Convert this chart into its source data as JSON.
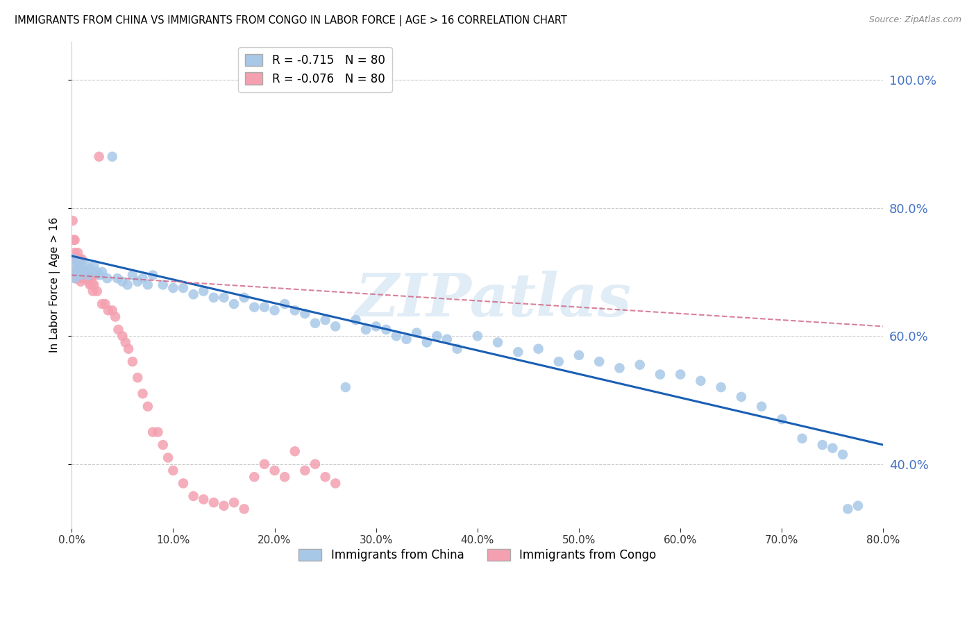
{
  "title": "IMMIGRANTS FROM CHINA VS IMMIGRANTS FROM CONGO IN LABOR FORCE | AGE > 16 CORRELATION CHART",
  "source": "Source: ZipAtlas.com",
  "ylabel": "In Labor Force | Age > 16",
  "china_R": -0.715,
  "china_N": 80,
  "congo_R": -0.076,
  "congo_N": 80,
  "china_color": "#a8c8e8",
  "congo_color": "#f4a0b0",
  "china_line_color": "#1a5fb4",
  "congo_line_color": "#d06080",
  "xlim": [
    0.0,
    0.8
  ],
  "ylim": [
    0.3,
    1.06
  ],
  "xticks": [
    0.0,
    0.1,
    0.2,
    0.3,
    0.4,
    0.5,
    0.6,
    0.7,
    0.8
  ],
  "yticks": [
    0.4,
    0.6,
    0.8,
    1.0
  ],
  "watermark": "ZIPatlas",
  "background": "#ffffff",
  "grid_color": "#cccccc",
  "china_scatter_x": [
    0.002,
    0.003,
    0.004,
    0.005,
    0.006,
    0.007,
    0.008,
    0.009,
    0.01,
    0.012,
    0.014,
    0.016,
    0.018,
    0.02,
    0.022,
    0.025,
    0.028,
    0.03,
    0.035,
    0.04,
    0.045,
    0.05,
    0.055,
    0.06,
    0.065,
    0.07,
    0.075,
    0.08,
    0.09,
    0.1,
    0.11,
    0.12,
    0.13,
    0.14,
    0.15,
    0.16,
    0.17,
    0.18,
    0.19,
    0.2,
    0.21,
    0.22,
    0.23,
    0.24,
    0.25,
    0.26,
    0.27,
    0.28,
    0.29,
    0.3,
    0.31,
    0.32,
    0.33,
    0.34,
    0.35,
    0.36,
    0.37,
    0.38,
    0.4,
    0.42,
    0.44,
    0.46,
    0.48,
    0.5,
    0.52,
    0.54,
    0.56,
    0.58,
    0.6,
    0.62,
    0.64,
    0.66,
    0.68,
    0.7,
    0.72,
    0.74,
    0.75,
    0.76,
    0.765,
    0.775
  ],
  "china_scatter_y": [
    0.72,
    0.69,
    0.71,
    0.7,
    0.715,
    0.7,
    0.695,
    0.715,
    0.705,
    0.7,
    0.71,
    0.695,
    0.705,
    0.7,
    0.71,
    0.7,
    0.695,
    0.7,
    0.69,
    0.88,
    0.69,
    0.685,
    0.68,
    0.695,
    0.685,
    0.69,
    0.68,
    0.695,
    0.68,
    0.675,
    0.675,
    0.665,
    0.67,
    0.66,
    0.66,
    0.65,
    0.66,
    0.645,
    0.645,
    0.64,
    0.65,
    0.64,
    0.635,
    0.62,
    0.625,
    0.615,
    0.52,
    0.625,
    0.61,
    0.615,
    0.61,
    0.6,
    0.595,
    0.605,
    0.59,
    0.6,
    0.595,
    0.58,
    0.6,
    0.59,
    0.575,
    0.58,
    0.56,
    0.57,
    0.56,
    0.55,
    0.555,
    0.54,
    0.54,
    0.53,
    0.52,
    0.505,
    0.49,
    0.47,
    0.44,
    0.43,
    0.425,
    0.415,
    0.33,
    0.335
  ],
  "congo_scatter_x": [
    0.001,
    0.001,
    0.002,
    0.002,
    0.002,
    0.003,
    0.003,
    0.003,
    0.003,
    0.004,
    0.004,
    0.004,
    0.005,
    0.005,
    0.005,
    0.005,
    0.006,
    0.006,
    0.006,
    0.007,
    0.007,
    0.007,
    0.008,
    0.008,
    0.008,
    0.009,
    0.009,
    0.01,
    0.01,
    0.011,
    0.011,
    0.012,
    0.012,
    0.013,
    0.014,
    0.015,
    0.016,
    0.017,
    0.018,
    0.019,
    0.02,
    0.021,
    0.022,
    0.023,
    0.025,
    0.027,
    0.03,
    0.033,
    0.036,
    0.04,
    0.043,
    0.046,
    0.05,
    0.053,
    0.056,
    0.06,
    0.065,
    0.07,
    0.075,
    0.08,
    0.085,
    0.09,
    0.095,
    0.1,
    0.11,
    0.12,
    0.13,
    0.14,
    0.15,
    0.16,
    0.17,
    0.18,
    0.19,
    0.2,
    0.21,
    0.22,
    0.23,
    0.24,
    0.25,
    0.26
  ],
  "congo_scatter_y": [
    0.78,
    0.72,
    0.75,
    0.72,
    0.7,
    0.75,
    0.73,
    0.72,
    0.7,
    0.72,
    0.7,
    0.69,
    0.72,
    0.72,
    0.7,
    0.69,
    0.73,
    0.71,
    0.695,
    0.72,
    0.7,
    0.69,
    0.71,
    0.695,
    0.69,
    0.7,
    0.685,
    0.72,
    0.7,
    0.7,
    0.695,
    0.7,
    0.69,
    0.7,
    0.695,
    0.69,
    0.69,
    0.685,
    0.68,
    0.69,
    0.68,
    0.67,
    0.68,
    0.695,
    0.67,
    0.88,
    0.65,
    0.65,
    0.64,
    0.64,
    0.63,
    0.61,
    0.6,
    0.59,
    0.58,
    0.56,
    0.535,
    0.51,
    0.49,
    0.45,
    0.45,
    0.43,
    0.41,
    0.39,
    0.37,
    0.35,
    0.345,
    0.34,
    0.335,
    0.34,
    0.33,
    0.38,
    0.4,
    0.39,
    0.38,
    0.42,
    0.39,
    0.4,
    0.38,
    0.37
  ],
  "china_line_x": [
    0.0,
    0.8
  ],
  "china_line_y": [
    0.725,
    0.43
  ],
  "congo_line_x": [
    0.0,
    0.8
  ],
  "congo_line_y": [
    0.695,
    0.615
  ]
}
